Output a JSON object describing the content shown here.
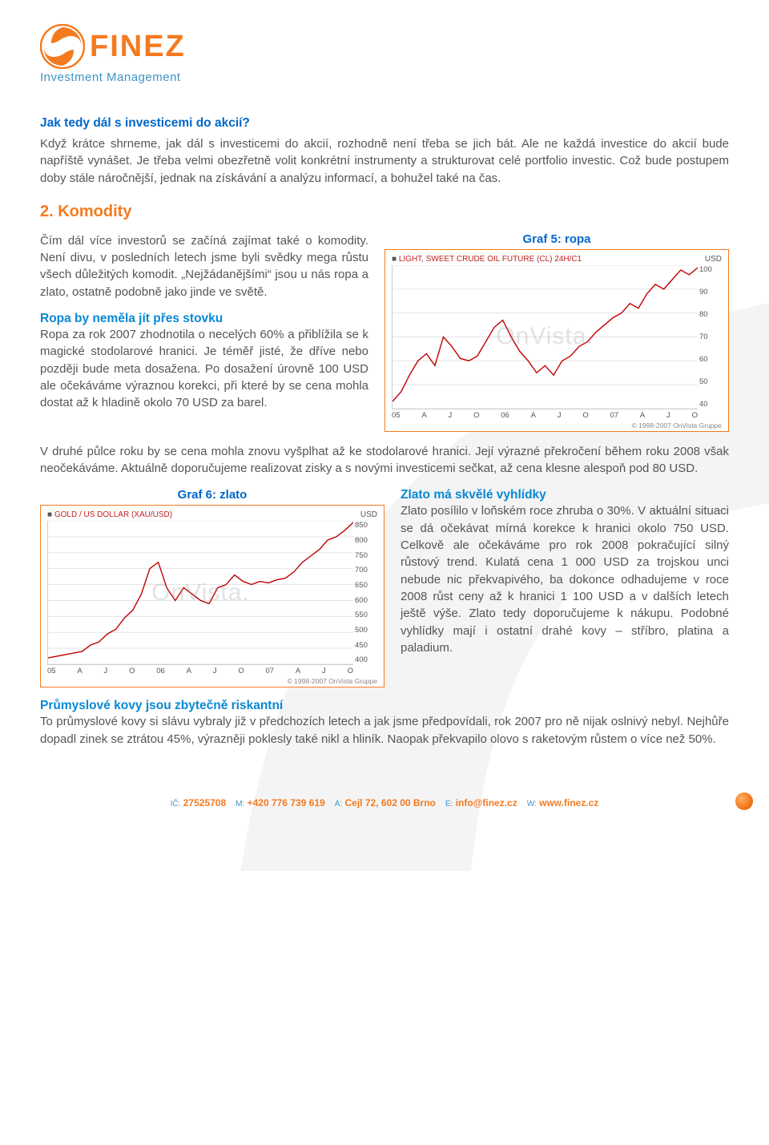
{
  "logo": {
    "name": "FINEZ",
    "tagline": "Investment Management"
  },
  "section1": {
    "title": "Jak tedy dál s investicemi do akcií?",
    "p1": "Když krátce shrneme, jak dál s investicemi do akcií, rozhodně není třeba se jich bát. Ale ne každá investice do akcií bude napříště vynášet. Je třeba velmi obezřetně volit konkrétní instrumenty a strukturovat celé portfolio investic. Což bude postupem doby stále náročnější, jednak na získávání a analýzu informací, a bohužel také na čas."
  },
  "section2": {
    "title": "2. Komodity",
    "p1": "Čím dál více investorů se začíná zajímat také o komodity. Není divu, v posledních letech jsme byli svědky mega růstu všech důležitých komodit. „Nejžádanějšími“ jsou u nás ropa a zlato, ostatně podobně jako jinde ve světě.",
    "sub1_title": "Ropa by neměla jít přes stovku",
    "sub1_body": "Ropa za rok 2007 zhodnotila o necelých 60% a přiblížila se k magické stodolarové hranici. Je téměř jisté, že dříve nebo později bude meta dosažena. Po dosažení úrovně 100 USD ale očekáváme výraznou korekci, při které by se cena mohla dostat až k hladině okolo 70 USD za barel.",
    "p2": "V druhé půlce roku by se cena mohla znovu vyšplhat až ke stodolarové hranici. Její výrazné překročení během roku 2008 však neočekáváme. Aktuálně doporučujeme realizovat zisky a s novými investicemi sečkat, až cena klesne alespoň pod 80 USD."
  },
  "chart5": {
    "caption": "Graf 5: ropa",
    "type": "line",
    "series_label": "LIGHT, SWEET CRUDE OIL FUTURE (CL) 24H/C1",
    "unit": "USD",
    "line_color": "#c00000",
    "border_color": "#f47a20",
    "grid_color": "#e5e5e5",
    "background_color": "#ffffff",
    "watermark": "OnVista.",
    "footer": "© 1998-2007 OnVista Gruppe",
    "ylim": [
      40,
      100
    ],
    "ytick_step": 10,
    "y_ticks": [
      "100",
      "90",
      "80",
      "70",
      "60",
      "50",
      "40"
    ],
    "x_ticks": [
      "05",
      "A",
      "J",
      "O",
      "06",
      "A",
      "J",
      "O",
      "07",
      "A",
      "J",
      "O"
    ],
    "data": [
      [
        0,
        43
      ],
      [
        2,
        47
      ],
      [
        4,
        54
      ],
      [
        6,
        60
      ],
      [
        8,
        63
      ],
      [
        10,
        58
      ],
      [
        12,
        70
      ],
      [
        14,
        66
      ],
      [
        16,
        61
      ],
      [
        18,
        60
      ],
      [
        20,
        62
      ],
      [
        22,
        68
      ],
      [
        24,
        74
      ],
      [
        26,
        77
      ],
      [
        28,
        70
      ],
      [
        30,
        64
      ],
      [
        32,
        60
      ],
      [
        34,
        55
      ],
      [
        36,
        58
      ],
      [
        38,
        54
      ],
      [
        40,
        60
      ],
      [
        42,
        62
      ],
      [
        44,
        66
      ],
      [
        46,
        68
      ],
      [
        48,
        72
      ],
      [
        50,
        75
      ],
      [
        52,
        78
      ],
      [
        54,
        80
      ],
      [
        56,
        84
      ],
      [
        58,
        82
      ],
      [
        60,
        88
      ],
      [
        62,
        92
      ],
      [
        64,
        90
      ],
      [
        66,
        94
      ],
      [
        68,
        98
      ],
      [
        70,
        96
      ],
      [
        72,
        99
      ]
    ],
    "xmax": 72
  },
  "chart6": {
    "caption": "Graf 6: zlato",
    "type": "line",
    "series_label": "GOLD / US DOLLAR (XAU/USD)",
    "unit": "USD",
    "line_color": "#c00000",
    "border_color": "#f47a20",
    "grid_color": "#e5e5e5",
    "background_color": "#ffffff",
    "watermark": "OnVista.",
    "footer": "© 1998-2007 OnVista Gruppe",
    "ylim": [
      400,
      850
    ],
    "ytick_step": 50,
    "y_ticks": [
      "850",
      "800",
      "750",
      "700",
      "650",
      "600",
      "550",
      "500",
      "450",
      "400"
    ],
    "x_ticks": [
      "05",
      "A",
      "J",
      "O",
      "06",
      "A",
      "J",
      "O",
      "07",
      "A",
      "J",
      "O"
    ],
    "data": [
      [
        0,
        420
      ],
      [
        2,
        425
      ],
      [
        4,
        430
      ],
      [
        6,
        435
      ],
      [
        8,
        440
      ],
      [
        10,
        460
      ],
      [
        12,
        470
      ],
      [
        14,
        495
      ],
      [
        16,
        510
      ],
      [
        18,
        545
      ],
      [
        20,
        570
      ],
      [
        22,
        620
      ],
      [
        24,
        700
      ],
      [
        26,
        720
      ],
      [
        28,
        640
      ],
      [
        30,
        600
      ],
      [
        32,
        640
      ],
      [
        34,
        620
      ],
      [
        36,
        600
      ],
      [
        38,
        590
      ],
      [
        40,
        640
      ],
      [
        42,
        650
      ],
      [
        44,
        680
      ],
      [
        46,
        660
      ],
      [
        48,
        650
      ],
      [
        50,
        660
      ],
      [
        52,
        655
      ],
      [
        54,
        665
      ],
      [
        56,
        670
      ],
      [
        58,
        690
      ],
      [
        60,
        720
      ],
      [
        62,
        740
      ],
      [
        64,
        760
      ],
      [
        66,
        790
      ],
      [
        68,
        800
      ],
      [
        70,
        820
      ],
      [
        72,
        845
      ]
    ],
    "xmax": 72
  },
  "section3": {
    "title": "Zlato má skvělé vyhlídky",
    "body": "Zlato posílilo v loňském roce zhruba o 30%. V aktuální situaci se dá očekávat mírná korekce k hranici okolo 750 USD. Celkově ale očekáváme pro rok 2008 pokračující silný růstový trend. Kulatá cena 1 000 USD za trojskou unci nebude nic překvapivého, ba dokonce odhadujeme v roce 2008 růst ceny až k hranici 1 100 USD a v dalších letech ještě výše. Zlato tedy doporučujeme k nákupu. Podobné vyhlídky mají i ostatní drahé kovy – stříbro, platina a paladium."
  },
  "section4": {
    "title": "Průmyslové kovy jsou zbytečně riskantní",
    "body": "To průmyslové kovy si slávu vybraly již v předchozích letech a jak jsme předpovídali, rok 2007 pro ně nijak oslnivý nebyl. Nejhůře dopadl zinek se ztrátou 45%, výrazněji poklesly také nikl a hliník. Naopak překvapilo olovo s raketovým růstem o více než 50%."
  },
  "footer": {
    "items": [
      {
        "k": "IČ:",
        "v": "27525708"
      },
      {
        "k": "M:",
        "v": "+420 776 739 619"
      },
      {
        "k": "A:",
        "v": "Cejl 72, 602 00 Brno"
      },
      {
        "k": "E:",
        "v": "info@finez.cz"
      },
      {
        "k": "W:",
        "v": "www.finez.cz"
      }
    ]
  }
}
